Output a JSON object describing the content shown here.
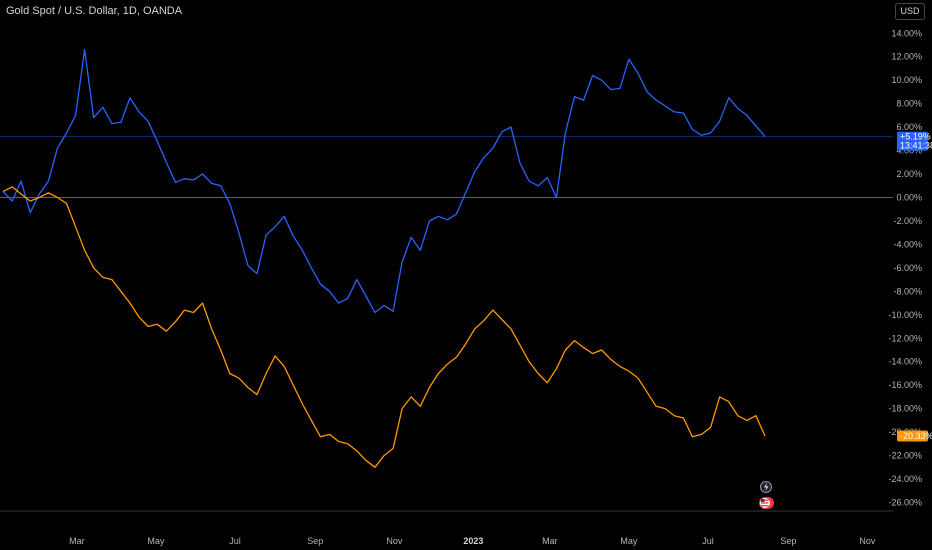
{
  "header": {
    "symbol_title": "Gold Spot / U.S. Dollar, 1D, OANDA",
    "currency_button": "USD"
  },
  "price_tags": {
    "blue_value": "+5.19%",
    "blue_countdown": "13:41:38",
    "orange_value": "-20.33%"
  },
  "colors": {
    "background": "#000000",
    "series_blue": "#2962ff",
    "series_orange": "#ff9800",
    "axis_text": "#b2b5be",
    "zero_line": "#5d606b"
  },
  "icons": [
    "lightning-icon",
    "us-flag-event-icon"
  ],
  "chart_data": {
    "type": "line",
    "title": "Gold Spot / U.S. Dollar, 1D, OANDA",
    "ylim": [
      -26.5,
      15
    ],
    "y_ticks": [
      "14.00%",
      "12.00%",
      "10.00%",
      "8.00%",
      "6.00%",
      "4.00%",
      "2.00%",
      "0.00%",
      "-2.00%",
      "-4.00%",
      "-6.00%",
      "-8.00%",
      "-10.00%",
      "-12.00%",
      "-14.00%",
      "-16.00%",
      "-18.00%",
      "-20.00%",
      "-22.00%",
      "-24.00%",
      "-26.00%"
    ],
    "y_tick_values": [
      14,
      12,
      10,
      8,
      6,
      4,
      2,
      0,
      -2,
      -4,
      -6,
      -8,
      -10,
      -12,
      -14,
      -16,
      -18,
      -20,
      -22,
      -24,
      -26
    ],
    "x_ticks": [
      "Mar",
      "May",
      "Jul",
      "Sep",
      "Nov",
      "2023",
      "Mar",
      "May",
      "Jul",
      "Sep",
      "Nov"
    ],
    "x_tick_dates": [
      "2022-03-01",
      "2022-05-01",
      "2022-07-01",
      "2022-09-01",
      "2022-11-01",
      "2023-01-01",
      "2023-03-01",
      "2023-05-01",
      "2023-07-01",
      "2023-09-01",
      "2023-11-01"
    ],
    "x_tick_bold": [
      false,
      false,
      false,
      false,
      false,
      true,
      false,
      false,
      false,
      false,
      false
    ],
    "grid": false,
    "series": [
      {
        "color": "#2962ff",
        "points": [
          [
            "2022-01-03",
            0.5
          ],
          [
            "2022-01-10",
            -0.3
          ],
          [
            "2022-01-17",
            1.4
          ],
          [
            "2022-01-24",
            -1.3
          ],
          [
            "2022-01-31",
            0.3
          ],
          [
            "2022-02-07",
            1.4
          ],
          [
            "2022-02-14",
            4.2
          ],
          [
            "2022-02-21",
            5.5
          ],
          [
            "2022-02-28",
            7.0
          ],
          [
            "2022-03-07",
            12.6
          ],
          [
            "2022-03-14",
            6.8
          ],
          [
            "2022-03-21",
            7.7
          ],
          [
            "2022-03-28",
            6.3
          ],
          [
            "2022-04-04",
            6.4
          ],
          [
            "2022-04-11",
            8.5
          ],
          [
            "2022-04-18",
            7.3
          ],
          [
            "2022-04-25",
            6.5
          ],
          [
            "2022-05-02",
            4.8
          ],
          [
            "2022-05-09",
            3.0
          ],
          [
            "2022-05-16",
            1.3
          ],
          [
            "2022-05-23",
            1.6
          ],
          [
            "2022-05-30",
            1.5
          ],
          [
            "2022-06-06",
            2.0
          ],
          [
            "2022-06-13",
            1.2
          ],
          [
            "2022-06-20",
            1.0
          ],
          [
            "2022-06-27",
            -0.5
          ],
          [
            "2022-07-04",
            -3.0
          ],
          [
            "2022-07-11",
            -5.8
          ],
          [
            "2022-07-18",
            -6.5
          ],
          [
            "2022-07-25",
            -3.2
          ],
          [
            "2022-08-01",
            -2.5
          ],
          [
            "2022-08-08",
            -1.6
          ],
          [
            "2022-08-15",
            -3.3
          ],
          [
            "2022-08-22",
            -4.5
          ],
          [
            "2022-08-29",
            -6.0
          ],
          [
            "2022-09-05",
            -7.4
          ],
          [
            "2022-09-12",
            -8.0
          ],
          [
            "2022-09-19",
            -9.0
          ],
          [
            "2022-09-26",
            -8.6
          ],
          [
            "2022-10-03",
            -7.0
          ],
          [
            "2022-10-10",
            -8.4
          ],
          [
            "2022-10-17",
            -9.8
          ],
          [
            "2022-10-24",
            -9.2
          ],
          [
            "2022-10-31",
            -9.7
          ],
          [
            "2022-11-07",
            -5.5
          ],
          [
            "2022-11-14",
            -3.4
          ],
          [
            "2022-11-21",
            -4.5
          ],
          [
            "2022-11-28",
            -2.0
          ],
          [
            "2022-12-05",
            -1.6
          ],
          [
            "2022-12-12",
            -1.9
          ],
          [
            "2022-12-19",
            -1.4
          ],
          [
            "2022-12-26",
            0.4
          ],
          [
            "2023-01-02",
            2.2
          ],
          [
            "2023-01-09",
            3.4
          ],
          [
            "2023-01-16",
            4.2
          ],
          [
            "2023-01-23",
            5.6
          ],
          [
            "2023-01-30",
            6.0
          ],
          [
            "2023-02-06",
            2.9
          ],
          [
            "2023-02-13",
            1.4
          ],
          [
            "2023-02-20",
            1.0
          ],
          [
            "2023-02-27",
            1.7
          ],
          [
            "2023-03-06",
            0.0
          ],
          [
            "2023-03-13",
            5.5
          ],
          [
            "2023-03-20",
            8.6
          ],
          [
            "2023-03-27",
            8.3
          ],
          [
            "2023-04-03",
            10.4
          ],
          [
            "2023-04-10",
            10.0
          ],
          [
            "2023-04-17",
            9.2
          ],
          [
            "2023-04-24",
            9.3
          ],
          [
            "2023-05-01",
            11.8
          ],
          [
            "2023-05-08",
            10.6
          ],
          [
            "2023-05-15",
            9.0
          ],
          [
            "2023-05-22",
            8.3
          ],
          [
            "2023-05-29",
            7.8
          ],
          [
            "2023-06-05",
            7.3
          ],
          [
            "2023-06-12",
            7.2
          ],
          [
            "2023-06-19",
            5.8
          ],
          [
            "2023-06-26",
            5.3
          ],
          [
            "2023-07-03",
            5.5
          ],
          [
            "2023-07-10",
            6.5
          ],
          [
            "2023-07-17",
            8.5
          ],
          [
            "2023-07-24",
            7.6
          ],
          [
            "2023-07-31",
            7.0
          ],
          [
            "2023-08-07",
            6.1
          ],
          [
            "2023-08-14",
            5.19
          ]
        ]
      },
      {
        "color": "#ff9800",
        "points": [
          [
            "2022-01-03",
            0.5
          ],
          [
            "2022-01-10",
            0.9
          ],
          [
            "2022-01-17",
            0.3
          ],
          [
            "2022-01-24",
            -0.3
          ],
          [
            "2022-01-31",
            0.0
          ],
          [
            "2022-02-07",
            0.4
          ],
          [
            "2022-02-14",
            0.0
          ],
          [
            "2022-02-21",
            -0.5
          ],
          [
            "2022-02-28",
            -2.5
          ],
          [
            "2022-03-07",
            -4.5
          ],
          [
            "2022-03-14",
            -6.0
          ],
          [
            "2022-03-21",
            -6.8
          ],
          [
            "2022-03-28",
            -7.0
          ],
          [
            "2022-04-04",
            -8.0
          ],
          [
            "2022-04-11",
            -9.0
          ],
          [
            "2022-04-18",
            -10.2
          ],
          [
            "2022-04-25",
            -11.0
          ],
          [
            "2022-05-02",
            -10.8
          ],
          [
            "2022-05-09",
            -11.4
          ],
          [
            "2022-05-16",
            -10.6
          ],
          [
            "2022-05-23",
            -9.6
          ],
          [
            "2022-05-30",
            -9.8
          ],
          [
            "2022-06-06",
            -9.0
          ],
          [
            "2022-06-13",
            -11.2
          ],
          [
            "2022-06-20",
            -13.0
          ],
          [
            "2022-06-27",
            -15.0
          ],
          [
            "2022-07-04",
            -15.4
          ],
          [
            "2022-07-11",
            -16.2
          ],
          [
            "2022-07-18",
            -16.8
          ],
          [
            "2022-07-25",
            -15.0
          ],
          [
            "2022-08-01",
            -13.5
          ],
          [
            "2022-08-08",
            -14.4
          ],
          [
            "2022-08-15",
            -16.0
          ],
          [
            "2022-08-22",
            -17.6
          ],
          [
            "2022-08-29",
            -19.0
          ],
          [
            "2022-09-05",
            -20.4
          ],
          [
            "2022-09-12",
            -20.2
          ],
          [
            "2022-09-19",
            -20.8
          ],
          [
            "2022-09-26",
            -21.0
          ],
          [
            "2022-10-03",
            -21.6
          ],
          [
            "2022-10-10",
            -22.4
          ],
          [
            "2022-10-17",
            -23.0
          ],
          [
            "2022-10-24",
            -22.0
          ],
          [
            "2022-10-31",
            -21.4
          ],
          [
            "2022-11-07",
            -18.0
          ],
          [
            "2022-11-14",
            -17.0
          ],
          [
            "2022-11-21",
            -17.8
          ],
          [
            "2022-11-28",
            -16.2
          ],
          [
            "2022-12-05",
            -15.0
          ],
          [
            "2022-12-12",
            -14.2
          ],
          [
            "2022-12-19",
            -13.6
          ],
          [
            "2022-12-26",
            -12.5
          ],
          [
            "2023-01-02",
            -11.2
          ],
          [
            "2023-01-09",
            -10.5
          ],
          [
            "2023-01-16",
            -9.6
          ],
          [
            "2023-01-23",
            -10.4
          ],
          [
            "2023-01-30",
            -11.2
          ],
          [
            "2023-02-06",
            -12.6
          ],
          [
            "2023-02-13",
            -14.0
          ],
          [
            "2023-02-20",
            -15.0
          ],
          [
            "2023-02-27",
            -15.8
          ],
          [
            "2023-03-06",
            -14.6
          ],
          [
            "2023-03-13",
            -13.0
          ],
          [
            "2023-03-20",
            -12.2
          ],
          [
            "2023-03-27",
            -12.8
          ],
          [
            "2023-04-03",
            -13.3
          ],
          [
            "2023-04-10",
            -13.0
          ],
          [
            "2023-04-17",
            -13.8
          ],
          [
            "2023-04-24",
            -14.4
          ],
          [
            "2023-05-01",
            -14.8
          ],
          [
            "2023-05-08",
            -15.4
          ],
          [
            "2023-05-15",
            -16.6
          ],
          [
            "2023-05-22",
            -17.8
          ],
          [
            "2023-05-29",
            -18.0
          ],
          [
            "2023-06-05",
            -18.6
          ],
          [
            "2023-06-12",
            -18.8
          ],
          [
            "2023-06-19",
            -20.4
          ],
          [
            "2023-06-26",
            -20.2
          ],
          [
            "2023-07-03",
            -19.6
          ],
          [
            "2023-07-10",
            -17.0
          ],
          [
            "2023-07-17",
            -17.4
          ],
          [
            "2023-07-24",
            -18.6
          ],
          [
            "2023-07-31",
            -19.0
          ],
          [
            "2023-08-07",
            -18.6
          ],
          [
            "2023-08-14",
            -20.33
          ]
        ]
      }
    ]
  }
}
